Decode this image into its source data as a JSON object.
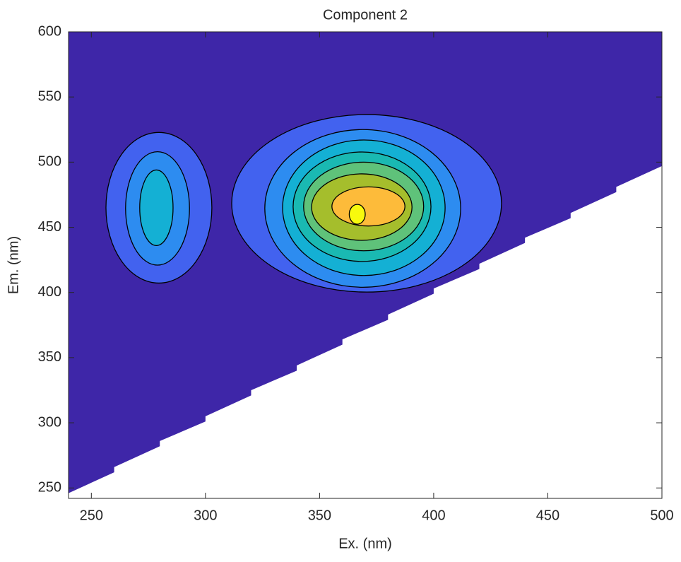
{
  "chart_data": {
    "type": "contour",
    "title": "Component 2",
    "x_label": "Ex. (nm)",
    "y_label": "Em. (nm)",
    "xlim": [
      240,
      500
    ],
    "ylim": [
      242,
      600
    ],
    "xticks": [
      250,
      300,
      350,
      400,
      450,
      500
    ],
    "yticks": [
      250,
      300,
      350,
      400,
      450,
      500,
      550,
      600
    ],
    "background_color": "#3e26a8",
    "region": {
      "x": [
        240,
        260,
        260,
        280,
        280,
        300,
        300,
        320,
        320,
        340,
        340,
        360,
        360,
        380,
        380,
        400,
        400,
        420,
        420,
        440,
        440,
        460,
        460,
        480,
        480,
        500,
        500,
        240
      ],
      "y": [
        246,
        262,
        266,
        282,
        286,
        301,
        305,
        321,
        325,
        340,
        344,
        360,
        364,
        379,
        383,
        399,
        403,
        418,
        422,
        438,
        442,
        457,
        461,
        477,
        481,
        497,
        600,
        600
      ]
    },
    "contours": [
      {
        "cx": 279.6,
        "cy": 465,
        "rx": 23.2,
        "ry": 57.8,
        "color": "#4262ef"
      },
      {
        "cx": 279,
        "cy": 464.5,
        "rx": 14,
        "ry": 43.5,
        "color": "#2d8cf0"
      },
      {
        "cx": 278.5,
        "cy": 465,
        "rx": 7.3,
        "ry": 29,
        "color": "#14b0d4"
      },
      {
        "cx": 370.6,
        "cy": 468.4,
        "rx": 59.1,
        "ry": 68.1,
        "color": "#4262ef"
      },
      {
        "cx": 368.9,
        "cy": 464.5,
        "rx": 42.9,
        "ry": 60.5,
        "color": "#2d8cf0"
      },
      {
        "cx": 369.4,
        "cy": 465,
        "rx": 35.6,
        "ry": 52,
        "color": "#14b0d4"
      },
      {
        "cx": 368.6,
        "cy": 465.8,
        "rx": 30.2,
        "ry": 42,
        "color": "#1ab9b2"
      },
      {
        "cx": 369.3,
        "cy": 466,
        "rx": 26.3,
        "ry": 34,
        "color": "#5fc27a"
      },
      {
        "cx": 368.5,
        "cy": 465.5,
        "rx": 22,
        "ry": 25.5,
        "color": "#a5be2c"
      },
      {
        "cx": 371.4,
        "cy": 466,
        "rx": 16,
        "ry": 15,
        "color": "#fdbb3a"
      },
      {
        "cx": 366.5,
        "cy": 460,
        "rx": 3.5,
        "ry": 7.6,
        "color": "#f8fa0d"
      }
    ]
  }
}
